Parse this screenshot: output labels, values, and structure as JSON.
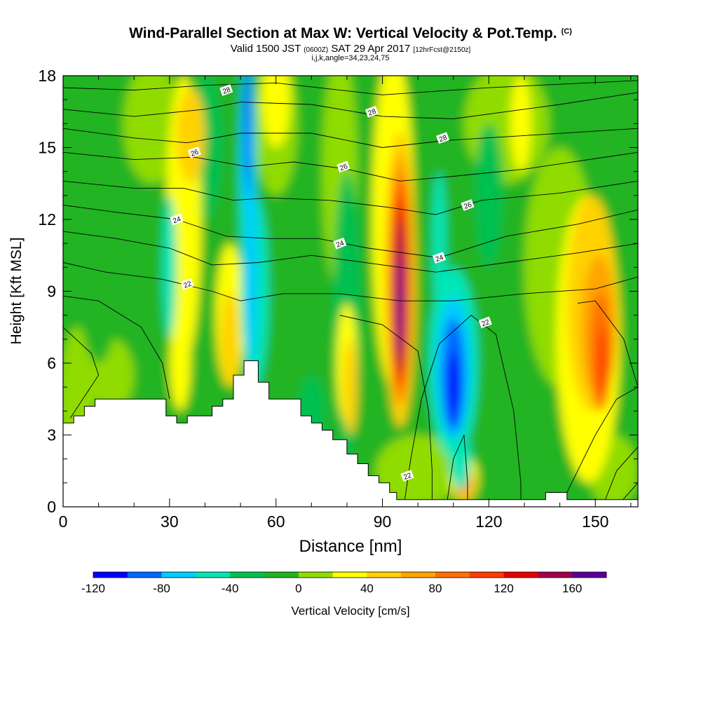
{
  "chart_data": {
    "type": "heatmap",
    "title": "Wind-Parallel Section at Max W: Vertical Velocity & Pot.Temp.",
    "title_mark": "(C)",
    "subtitle_pre": "Valid 1500 JST",
    "subtitle_z": "(0600Z)",
    "subtitle_mid": "SAT 29 Apr 2017",
    "subtitle_fcst": "[12hrFcst@2150z]",
    "params": "i,j,k,angle=34,23,24,75",
    "xlabel": "Distance [nm]",
    "ylabel": "Height [Kft MSL]",
    "xlim": [
      0,
      162
    ],
    "ylim": [
      0,
      18
    ],
    "x_ticks": [
      "0",
      "30",
      "60",
      "90",
      "120",
      "150"
    ],
    "y_ticks": [
      "0",
      "3",
      "6",
      "9",
      "12",
      "15",
      "18"
    ],
    "x_tick_values": [
      0,
      30,
      60,
      90,
      120,
      150
    ],
    "y_tick_values": [
      0,
      3,
      6,
      9,
      12,
      15,
      18
    ],
    "colorbar": {
      "label": "Vertical Velocity [cm/s]",
      "levels": [
        -120,
        -100,
        -80,
        -60,
        -40,
        -20,
        0,
        20,
        40,
        60,
        80,
        100,
        120,
        140,
        160,
        180
      ],
      "tick_labels": [
        "-120",
        "-80",
        "-40",
        "0",
        "40",
        "80",
        "120",
        "160"
      ],
      "colors": [
        "#0000ff",
        "#0066ff",
        "#00ccff",
        "#00e6b8",
        "#00c050",
        "#22b422",
        "#90dc00",
        "#ffff00",
        "#ffd200",
        "#ffa500",
        "#ff7000",
        "#ff3c00",
        "#e60000",
        "#a0004a",
        "#5a0096"
      ]
    },
    "theta_contour_labels": [
      {
        "text": "28",
        "x": 46,
        "y": 17.4
      },
      {
        "text": "28",
        "x": 87,
        "y": 16.5
      },
      {
        "text": "28",
        "x": 107,
        "y": 15.4
      },
      {
        "text": "26",
        "x": 37,
        "y": 14.8
      },
      {
        "text": "26",
        "x": 79,
        "y": 14.2
      },
      {
        "text": "26",
        "x": 114,
        "y": 12.6
      },
      {
        "text": "24",
        "x": 32,
        "y": 12.0
      },
      {
        "text": "24",
        "x": 78,
        "y": 11.0
      },
      {
        "text": "24",
        "x": 106,
        "y": 10.4
      },
      {
        "text": "22",
        "x": 35,
        "y": 9.3
      },
      {
        "text": "22",
        "x": 119,
        "y": 7.7
      },
      {
        "text": "22",
        "x": 97,
        "y": 1.3
      }
    ],
    "cores": [
      {
        "x": 95,
        "y": 8.8,
        "w_cm_s": 165
      },
      {
        "x": 110,
        "y": 5.2,
        "w_cm_s": -115
      },
      {
        "x": 152,
        "y": 6.0,
        "w_cm_s": 110
      },
      {
        "x": 52,
        "y": 17.0,
        "w_cm_s": -120
      },
      {
        "x": 112,
        "y": 1.0,
        "w_cm_s": 85
      }
    ],
    "terrain": [
      [
        0,
        3.5
      ],
      [
        3,
        3.5
      ],
      [
        3,
        3.8
      ],
      [
        6,
        3.8
      ],
      [
        6,
        4.2
      ],
      [
        9,
        4.2
      ],
      [
        9,
        4.5
      ],
      [
        29,
        4.5
      ],
      [
        29,
        3.8
      ],
      [
        32,
        3.8
      ],
      [
        32,
        3.5
      ],
      [
        35,
        3.5
      ],
      [
        35,
        3.8
      ],
      [
        42,
        3.8
      ],
      [
        42,
        4.2
      ],
      [
        45,
        4.2
      ],
      [
        45,
        4.5
      ],
      [
        48,
        4.5
      ],
      [
        48,
        5.5
      ],
      [
        51,
        5.5
      ],
      [
        51,
        6.1
      ],
      [
        55,
        6.1
      ],
      [
        55,
        5.2
      ],
      [
        58,
        5.2
      ],
      [
        58,
        4.5
      ],
      [
        67,
        4.5
      ],
      [
        67,
        3.8
      ],
      [
        70,
        3.8
      ],
      [
        70,
        3.5
      ],
      [
        73,
        3.5
      ],
      [
        73,
        3.2
      ],
      [
        76,
        3.2
      ],
      [
        76,
        2.8
      ],
      [
        80,
        2.8
      ],
      [
        80,
        2.2
      ],
      [
        83,
        2.2
      ],
      [
        83,
        1.8
      ],
      [
        86,
        1.8
      ],
      [
        86,
        1.3
      ],
      [
        89,
        1.3
      ],
      [
        89,
        1.0
      ],
      [
        92,
        1.0
      ],
      [
        92,
        0.6
      ],
      [
        94,
        0.6
      ],
      [
        94,
        0.3
      ],
      [
        136,
        0.3
      ],
      [
        136,
        0.6
      ],
      [
        142,
        0.6
      ],
      [
        142,
        0.3
      ],
      [
        162,
        0.3
      ]
    ]
  }
}
